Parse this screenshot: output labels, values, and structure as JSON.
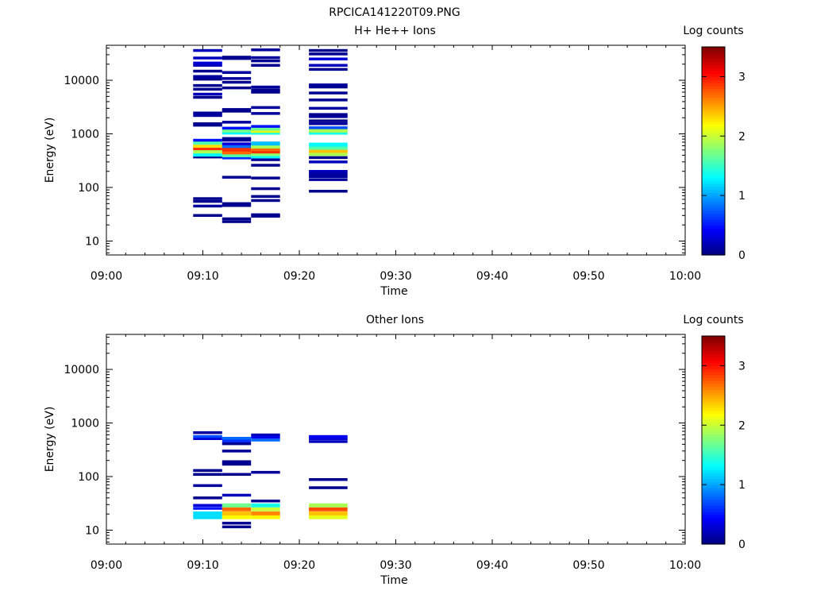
{
  "page_title": "RPCICA141220T09.PNG",
  "colors": {
    "jet_stops": [
      "#00007f",
      "#0000ff",
      "#007fff",
      "#00ffff",
      "#7fff7f",
      "#ffff00",
      "#ff7f00",
      "#ff0000",
      "#7f0000"
    ]
  },
  "chart_data": [
    {
      "type": "heatmap",
      "title": "H+ He++ Ions",
      "xlabel": "Time",
      "ylabel": "Energy (eV)",
      "yscale": "log",
      "ylim": [
        5.5,
        45000
      ],
      "xticks": [
        "09:00",
        "09:10",
        "09:20",
        "09:30",
        "09:40",
        "09:50",
        "10:00"
      ],
      "yticks": [
        10,
        100,
        1000,
        10000
      ],
      "colorbar": {
        "label": "Log counts",
        "range": [
          0,
          3.5
        ],
        "ticks": [
          0,
          1,
          2,
          3
        ]
      },
      "columns": [
        {
          "t_start": "09:09",
          "t_end": "09:12",
          "bins": [
            [
              30,
              0.05
            ],
            [
              45,
              0.1
            ],
            [
              55,
              0.05
            ],
            [
              62,
              0.05
            ],
            [
              370,
              0.05
            ],
            [
              410,
              1.3
            ],
            [
              470,
              1.9
            ],
            [
              540,
              2.9
            ],
            [
              600,
              2.3
            ],
            [
              680,
              1.6
            ],
            [
              760,
              0.5
            ],
            [
              1450,
              0.05
            ],
            [
              1550,
              0.05
            ],
            [
              2200,
              0.1
            ],
            [
              2450,
              0.1
            ],
            [
              4800,
              0.05
            ],
            [
              5500,
              0.2
            ],
            [
              6800,
              0.05
            ],
            [
              8000,
              0.05
            ],
            [
              10500,
              0.05
            ],
            [
              11800,
              0.1
            ],
            [
              14800,
              0.05
            ],
            [
              19000,
              0.2
            ],
            [
              21000,
              0.3
            ],
            [
              26000,
              0.2
            ],
            [
              36000,
              0.2
            ]
          ]
        },
        {
          "t_start": "09:12",
          "t_end": "09:15",
          "bins": [
            [
              23,
              0.05
            ],
            [
              26,
              0.05
            ],
            [
              46,
              0.05
            ],
            [
              50,
              0.05
            ],
            [
              155,
              0.05
            ],
            [
              355,
              0.6
            ],
            [
              400,
              1.6
            ],
            [
              450,
              2.7
            ],
            [
              510,
              2.9
            ],
            [
              580,
              0.8
            ],
            [
              650,
              0.3
            ],
            [
              760,
              0.1
            ],
            [
              820,
              0.05
            ],
            [
              1060,
              1.3
            ],
            [
              1150,
              1.7
            ],
            [
              1280,
              0.5
            ],
            [
              1650,
              0.1
            ],
            [
              2650,
              0.05
            ],
            [
              2850,
              0.05
            ],
            [
              7200,
              0.05
            ],
            [
              9200,
              0.05
            ],
            [
              10800,
              0.1
            ],
            [
              14000,
              0.1
            ],
            [
              25500,
              0.05
            ],
            [
              27000,
              0.05
            ]
          ]
        },
        {
          "t_start": "09:15",
          "t_end": "09:18",
          "bins": [
            [
              29,
              0.05
            ],
            [
              31,
              0.05
            ],
            [
              57,
              0.05
            ],
            [
              68,
              0.05
            ],
            [
              95,
              0.05
            ],
            [
              150,
              0.05
            ],
            [
              260,
              0.05
            ],
            [
              330,
              0.1
            ],
            [
              380,
              1.3
            ],
            [
              420,
              1.8
            ],
            [
              470,
              2.9
            ],
            [
              520,
              2.7
            ],
            [
              580,
              1.9
            ],
            [
              660,
              1.1
            ],
            [
              1050,
              1.4
            ],
            [
              1140,
              2.1
            ],
            [
              1250,
              1.7
            ],
            [
              1380,
              0.5
            ],
            [
              2400,
              0.1
            ],
            [
              3100,
              0.1
            ],
            [
              6000,
              0.05
            ],
            [
              6600,
              0.05
            ],
            [
              7500,
              0.1
            ],
            [
              19000,
              0.05
            ],
            [
              23000,
              0.05
            ],
            [
              26500,
              0.1
            ],
            [
              37000,
              0.1
            ]
          ]
        },
        {
          "t_start": "09:21",
          "t_end": "09:25",
          "bins": [
            [
              85,
              0.05
            ],
            [
              140,
              0.1
            ],
            [
              160,
              0.1
            ],
            [
              180,
              0.1
            ],
            [
              200,
              0.2
            ],
            [
              300,
              0.2
            ],
            [
              360,
              0.05
            ],
            [
              420,
              1.9
            ],
            [
              480,
              2.4
            ],
            [
              550,
              1.6
            ],
            [
              630,
              1.3
            ],
            [
              1050,
              1.4
            ],
            [
              1150,
              1.9
            ],
            [
              1300,
              0.7
            ],
            [
              1550,
              0.1
            ],
            [
              1750,
              0.05
            ],
            [
              2100,
              0.1
            ],
            [
              2300,
              0.05
            ],
            [
              3000,
              0.1
            ],
            [
              4300,
              0.05
            ],
            [
              5800,
              0.05
            ],
            [
              7500,
              0.05
            ],
            [
              8200,
              0.1
            ],
            [
              16000,
              0.05
            ],
            [
              19000,
              0.2
            ],
            [
              25000,
              0.3
            ],
            [
              31000,
              0.05
            ],
            [
              36000,
              0.05
            ]
          ]
        }
      ]
    },
    {
      "type": "heatmap",
      "title": "Other Ions",
      "xlabel": "Time",
      "ylabel": "Energy (eV)",
      "yscale": "log",
      "ylim": [
        5.5,
        45000
      ],
      "xticks": [
        "09:00",
        "09:10",
        "09:20",
        "09:30",
        "09:40",
        "09:50",
        "10:00"
      ],
      "yticks": [
        10,
        100,
        1000,
        10000
      ],
      "colorbar": {
        "label": "Log counts",
        "range": [
          0,
          3.5
        ],
        "ticks": [
          0,
          1,
          2,
          3
        ]
      },
      "columns": [
        {
          "t_start": "09:09",
          "t_end": "09:12",
          "bins": [
            [
              17.5,
              1.2
            ],
            [
              20.5,
              1.2
            ],
            [
              25.5,
              0.5
            ],
            [
              29,
              0.3
            ],
            [
              40,
              0.05
            ],
            [
              68,
              0.1
            ],
            [
              110,
              0.05
            ],
            [
              130,
              0.05
            ],
            [
              510,
              0.3
            ],
            [
              560,
              0.7
            ],
            [
              660,
              0.1
            ]
          ]
        },
        {
          "t_start": "09:12",
          "t_end": "09:15",
          "bins": [
            [
              11.5,
              0.05
            ],
            [
              13.5,
              0.05
            ],
            [
              17.5,
              2.2
            ],
            [
              20.5,
              2.4
            ],
            [
              24.5,
              2.7
            ],
            [
              29,
              1.7
            ],
            [
              45,
              0.2
            ],
            [
              110,
              0.05
            ],
            [
              170,
              0.05
            ],
            [
              190,
              0.05
            ],
            [
              300,
              0.1
            ],
            [
              410,
              0.05
            ],
            [
              460,
              0.6
            ],
            [
              520,
              0.8
            ]
          ]
        },
        {
          "t_start": "09:15",
          "t_end": "09:18",
          "bins": [
            [
              17.5,
              2.2
            ],
            [
              20.5,
              2.6
            ],
            [
              24.5,
              2.0
            ],
            [
              29,
              1.4
            ],
            [
              35,
              0.05
            ],
            [
              120,
              0.1
            ],
            [
              480,
              0.8
            ],
            [
              540,
              0.4
            ],
            [
              600,
              0.2
            ]
          ]
        },
        {
          "t_start": "09:21",
          "t_end": "09:25",
          "bins": [
            [
              17.5,
              2.1
            ],
            [
              20.5,
              2.4
            ],
            [
              24.5,
              2.8
            ],
            [
              29,
              1.9
            ],
            [
              62,
              0.05
            ],
            [
              88,
              0.05
            ],
            [
              450,
              0.2
            ],
            [
              510,
              0.3
            ],
            [
              560,
              0.4
            ]
          ]
        }
      ]
    }
  ]
}
